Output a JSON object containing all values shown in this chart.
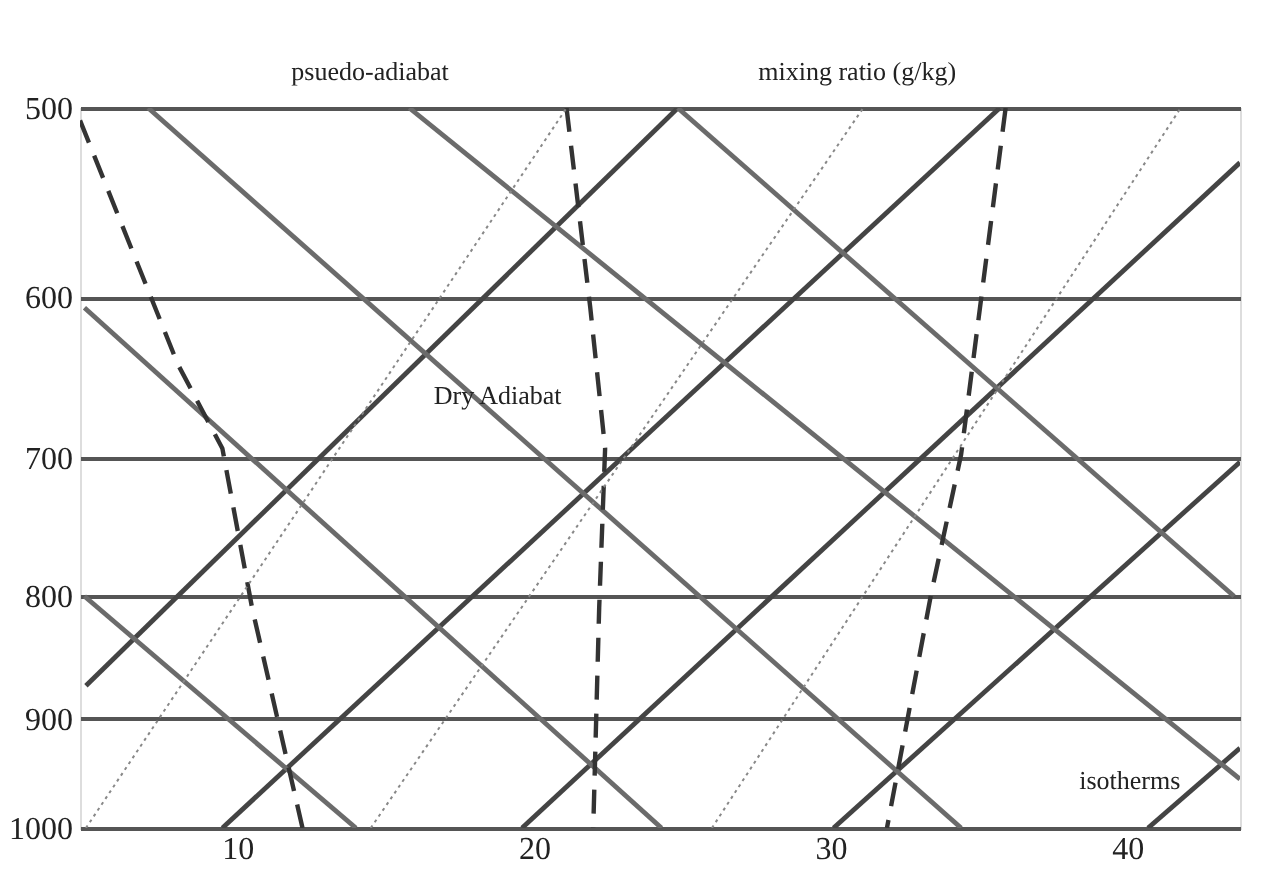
{
  "chart_data": {
    "type": "line",
    "xlim": [
      4.7,
      43.8
    ],
    "xticks": [
      10,
      20,
      30,
      40
    ],
    "ylim": [
      1000,
      500
    ],
    "yticks": [
      500,
      600,
      700,
      800,
      900,
      1000
    ],
    "log": "y",
    "grid": "y",
    "marker": "none",
    "annotations": [
      "psuedo-adiabat",
      "mixing ratio (g/kg)",
      "Dry Adiabat",
      "isotherms"
    ],
    "series": [
      {
        "color": "#444444",
        "line_style": "solid",
        "x": [
          4.9,
          24.85
        ],
        "values": [
          872,
          500
        ]
      },
      {
        "color": "#444444",
        "line_style": "solid",
        "x": [
          9.5,
          35.7
        ],
        "values": [
          1000,
          500
        ]
      },
      {
        "color": "#444444",
        "line_style": "solid",
        "x": [
          19.6,
          43.8
        ],
        "values": [
          1000,
          527
        ]
      },
      {
        "color": "#444444",
        "line_style": "solid",
        "x": [
          30.1,
          43.8
        ],
        "values": [
          1000,
          703
        ]
      },
      {
        "color": "#444444",
        "line_style": "solid",
        "x": [
          40.7,
          43.8
        ],
        "values": [
          1000,
          926
        ]
      },
      {
        "color": "#6b6b6b",
        "line_style": "solid",
        "x": [
          4.85,
          14.0
        ],
        "values": [
          800,
          1000
        ]
      },
      {
        "color": "#6b6b6b",
        "line_style": "solid",
        "x": [
          4.85,
          24.3
        ],
        "values": [
          606,
          1000
        ]
      },
      {
        "color": "#6b6b6b",
        "line_style": "solid",
        "x": [
          7.0,
          34.4
        ],
        "values": [
          500,
          1000
        ]
      },
      {
        "color": "#6b6b6b",
        "line_style": "solid",
        "x": [
          15.8,
          43.8
        ],
        "values": [
          500,
          954
        ]
      },
      {
        "color": "#6b6b6b",
        "line_style": "solid",
        "x": [
          24.85,
          43.6
        ],
        "values": [
          500,
          800
        ]
      },
      {
        "color": "#333333",
        "line_style": "dashed",
        "x": [
          4.7,
          8.0,
          9.5,
          10.5,
          12.2
        ],
        "values": [
          506,
          640,
          694,
          809,
          1000
        ]
      },
      {
        "color": "#333333",
        "line_style": "dashed",
        "x": [
          21.1,
          21.9,
          22.4,
          22.2,
          22.0
        ],
        "values": [
          500,
          606,
          694,
          809,
          1000
        ]
      },
      {
        "color": "#333333",
        "line_style": "dashed",
        "x": [
          35.9,
          34.4,
          33.4,
          31.9
        ],
        "values": [
          500,
          698,
          797,
          1000
        ]
      },
      {
        "color": "#888888",
        "line_style": "dotted",
        "x": [
          4.9,
          21.1
        ],
        "values": [
          1000,
          500
        ]
      },
      {
        "color": "#888888",
        "line_style": "dotted",
        "x": [
          14.5,
          31.1
        ],
        "values": [
          1000,
          500
        ]
      },
      {
        "color": "#888888",
        "line_style": "dotted",
        "x": [
          26.0,
          41.8
        ],
        "values": [
          1000,
          500
        ]
      }
    ]
  }
}
